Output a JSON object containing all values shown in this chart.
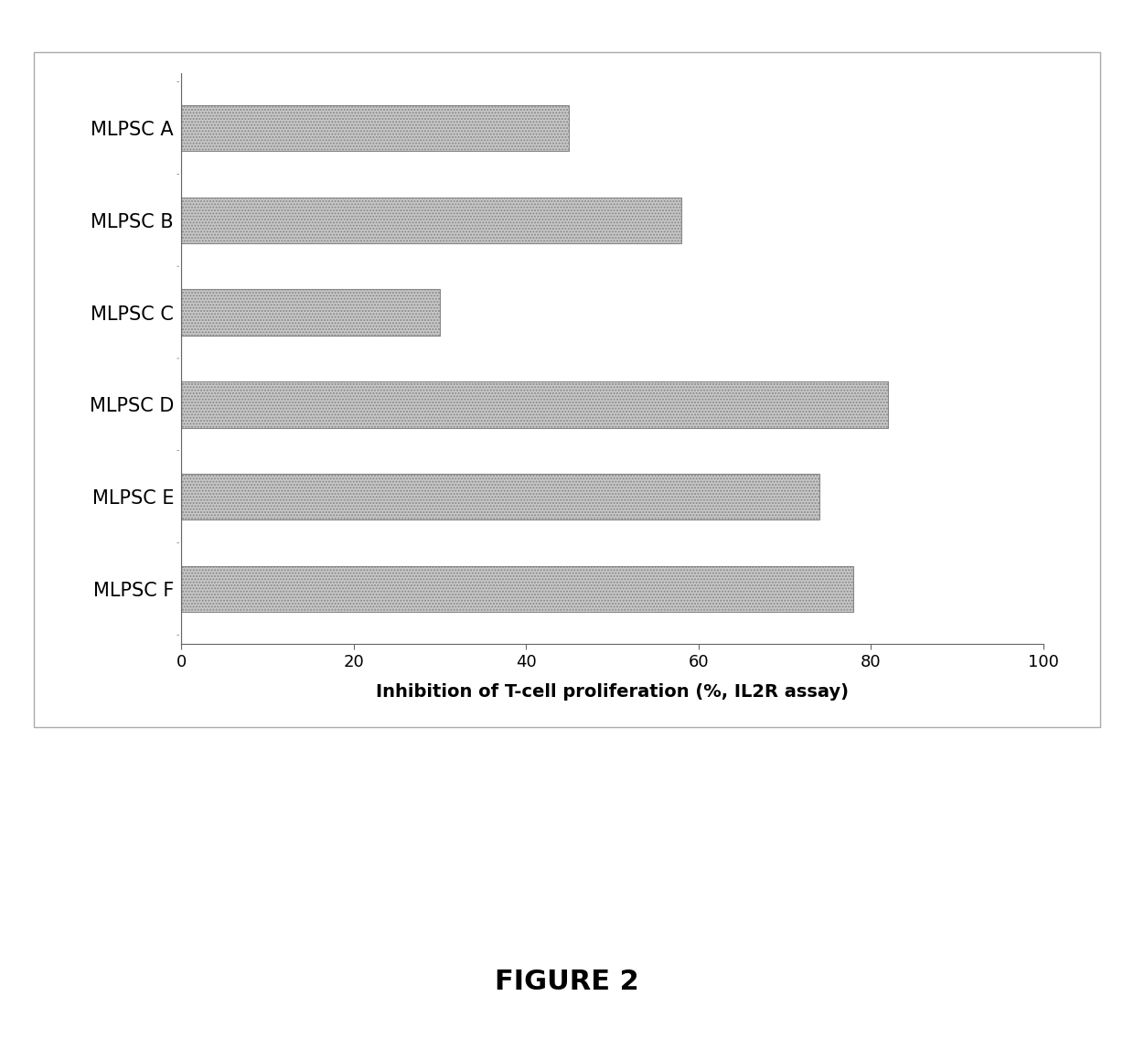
{
  "categories": [
    "MLPSC A",
    "MLPSC B",
    "MLPSC C",
    "MLPSC D",
    "MLPSC E",
    "MLPSC F"
  ],
  "values": [
    45,
    58,
    30,
    82,
    74,
    78
  ],
  "bar_color": "#c8c8c8",
  "bar_hatch": ".....",
  "xlabel": "Inhibition of T-cell proliferation (%, IL2R assay)",
  "xlim": [
    0,
    100
  ],
  "xticks": [
    0,
    20,
    40,
    60,
    80,
    100
  ],
  "background_color": "#ffffff",
  "figure_caption": "FIGURE 2",
  "label_fontsize": 15,
  "tick_fontsize": 13,
  "xlabel_fontsize": 14,
  "caption_fontsize": 22,
  "bar_edge_color": "#888888",
  "bar_linewidth": 0.8
}
